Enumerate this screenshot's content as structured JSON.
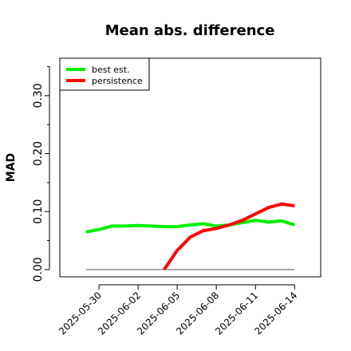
{
  "chart_data": {
    "type": "line",
    "title": "Mean abs. difference",
    "ylabel": "MAD",
    "x": [
      "2025-05-29",
      "2025-05-30",
      "2025-05-31",
      "2025-06-01",
      "2025-06-02",
      "2025-06-03",
      "2025-06-04",
      "2025-06-05",
      "2025-06-06",
      "2025-06-07",
      "2025-06-08",
      "2025-06-09",
      "2025-06-10",
      "2025-06-11",
      "2025-06-12",
      "2025-06-13",
      "2025-06-14"
    ],
    "series": [
      {
        "name": "best est.",
        "color": "#00ee00",
        "values": [
          0.065,
          0.069,
          0.075,
          0.075,
          0.076,
          0.075,
          0.074,
          0.074,
          0.077,
          0.079,
          0.075,
          0.077,
          0.081,
          0.085,
          0.082,
          0.084,
          0.077
        ]
      },
      {
        "name": "persistence",
        "color": "#ff0000",
        "values": [
          null,
          null,
          null,
          null,
          null,
          null,
          0.0,
          0.033,
          0.056,
          0.067,
          0.071,
          0.077,
          0.085,
          0.096,
          0.107,
          0.113,
          0.11
        ]
      }
    ],
    "reference_line": 0,
    "xlim": [
      "2025-05-27",
      "2025-06-16"
    ],
    "xticks": [
      "2025-05-30",
      "2025-06-02",
      "2025-06-05",
      "2025-06-08",
      "2025-06-11",
      "2025-06-14"
    ],
    "ylim": [
      -0.0125,
      0.3645
    ],
    "yticks": [
      {
        "value": 0,
        "label": "0.00"
      },
      {
        "value": 0.1,
        "label": "0.10"
      },
      {
        "value": 0.2,
        "label": "0.20"
      },
      {
        "value": 0.3,
        "label": "0.30"
      }
    ],
    "minor_yticks": [
      0.05,
      0.15,
      0.25,
      0.35
    ],
    "legend": "top-left"
  }
}
